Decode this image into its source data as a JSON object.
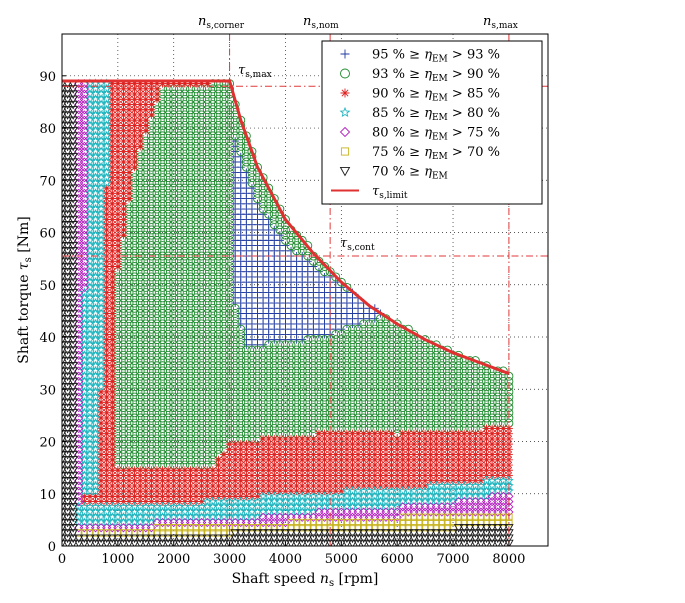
{
  "chart_data": {
    "type": "scatter",
    "title": "",
    "xlabel": "Shaft speed n_s [rpm]",
    "ylabel": "Shaft torque τ_s [Nm]",
    "xlim": [
      0,
      8700
    ],
    "ylim": [
      0,
      98
    ],
    "xticks": [
      0,
      1000,
      2000,
      3000,
      4000,
      5000,
      6000,
      7000,
      8000
    ],
    "yticks": [
      0,
      10,
      20,
      30,
      40,
      50,
      60,
      70,
      80,
      90
    ],
    "grid": true,
    "legend_position": "top-right",
    "reference_lines": {
      "vertical": [
        {
          "label": "n_s,corner",
          "x": 3000
        },
        {
          "label": "n_s,nom",
          "x": 4800
        },
        {
          "label": "n_s,max",
          "x": 8000
        }
      ],
      "horizontal": [
        {
          "label": "τ_s,max",
          "y": 88
        },
        {
          "label": "τ_s,cont",
          "y": 55.5
        }
      ]
    },
    "series": [
      {
        "name": "95 % ≥ η_EM > 93 %",
        "marker": "plus",
        "color": "#1f3aa0",
        "region": "Approximate filled area bounded by (n, τ): (3100,78), (3500,66), (4000,58), (4500,54), (5000,50), (5500,47), (5900,44.5), (4700,40), (3300,38), (3050,48), (3000,66)"
      },
      {
        "name": "93 % ≥ η_EM > 90 %",
        "marker": "circle",
        "color": "#1e8a2e",
        "region": "Approximate filled area: main body 1000–3000 rpm from 15 to 88 Nm, extending along torque limit to 8000 rpm between ~22 and ~33 Nm"
      },
      {
        "name": "90 % ≥ η_EM > 85 %",
        "marker": "asterisk",
        "color": "#e0201e",
        "region": "Approximate filled area: band ~200–1100 rpm up to 89 Nm, band 300–8000 rpm from ~8 to ~29 Nm"
      },
      {
        "name": "85 % ≥ η_EM > 80 %",
        "marker": "pentagram",
        "color": "#1fb5bf",
        "region": "Approximate filled area: narrow wedge ~400–850 rpm up to 89 Nm, band from ~10 to ~18 Nm at high speed"
      },
      {
        "name": "80 % ≥ η_EM > 75 %",
        "marker": "diamond",
        "color": "#b31fbf",
        "region": "Approximate filled area: thin wedge ~250–800 rpm, band ~5–12 Nm at high speed"
      },
      {
        "name": "75 % ≥ η_EM > 70 %",
        "marker": "square",
        "color": "#c8b41f",
        "region": "Approximate filled area: thin band near 100–400 rpm and ~3–7 Nm at high speed"
      },
      {
        "name": "70 % ≥ η_EM",
        "marker": "triangle-down",
        "color": "#1a1a1a",
        "region": "Approximate filled area: 0–300 rpm column and 0–6 Nm strip across speed range"
      }
    ],
    "torque_limit": {
      "name": "τ_s,limit",
      "color": "#e03030",
      "x": [
        0,
        3000,
        3200,
        3500,
        4000,
        4500,
        5000,
        5500,
        6000,
        6500,
        7000,
        7500,
        8000
      ],
      "y": [
        89,
        89,
        81.5,
        72.5,
        62.5,
        56,
        50.5,
        46,
        42.5,
        39.5,
        37,
        35,
        33
      ]
    }
  },
  "legend": {
    "items": [
      {
        "id": "plus",
        "color": "#1f3aa0",
        "left": "95 % ≥ ",
        "sym": "η",
        "sub": "EM",
        "right": " > 93 %"
      },
      {
        "id": "circle",
        "color": "#1e8a2e",
        "left": "93 % ≥ ",
        "sym": "η",
        "sub": "EM",
        "right": " > 90 %"
      },
      {
        "id": "asterisk",
        "color": "#e0201e",
        "left": "90 % ≥ ",
        "sym": "η",
        "sub": "EM",
        "right": " > 85 %"
      },
      {
        "id": "pentagram",
        "color": "#1fb5bf",
        "left": "85 % ≥ ",
        "sym": "η",
        "sub": "EM",
        "right": " > 80 %"
      },
      {
        "id": "diamond",
        "color": "#b31fbf",
        "left": "80 % ≥ ",
        "sym": "η",
        "sub": "EM",
        "right": " > 75 %"
      },
      {
        "id": "square",
        "color": "#c8b41f",
        "left": "75 % ≥ ",
        "sym": "η",
        "sub": "EM",
        "right": " > 70 %"
      },
      {
        "id": "triangle",
        "color": "#1a1a1a",
        "left": "70 % ≥ ",
        "sym": "η",
        "sub": "EM",
        "right": ""
      },
      {
        "id": "line",
        "color": "#e03030",
        "left": "",
        "sym": "τ",
        "sub": "s,limit",
        "right": ""
      }
    ]
  },
  "labels": {
    "corner_main": "n",
    "corner_sub": "s,corner",
    "nom_main": "n",
    "nom_sub": "s,nom",
    "max_main": "n",
    "max_sub": "s,max",
    "tmax_main": "τ",
    "tmax_sub": "s,max",
    "tcont_main": "τ",
    "tcont_sub": "s,cont",
    "xlabel_a": "Shaft speed ",
    "xlabel_b": "n",
    "xlabel_c": "s",
    "xlabel_d": " [rpm]",
    "ylabel_a": "Shaft torque ",
    "ylabel_b": "τ",
    "ylabel_c": "s",
    "ylabel_d": " [Nm]"
  },
  "colors": {
    "axis": "#000000",
    "grid": "#222222",
    "reference": "#e03a3a"
  }
}
